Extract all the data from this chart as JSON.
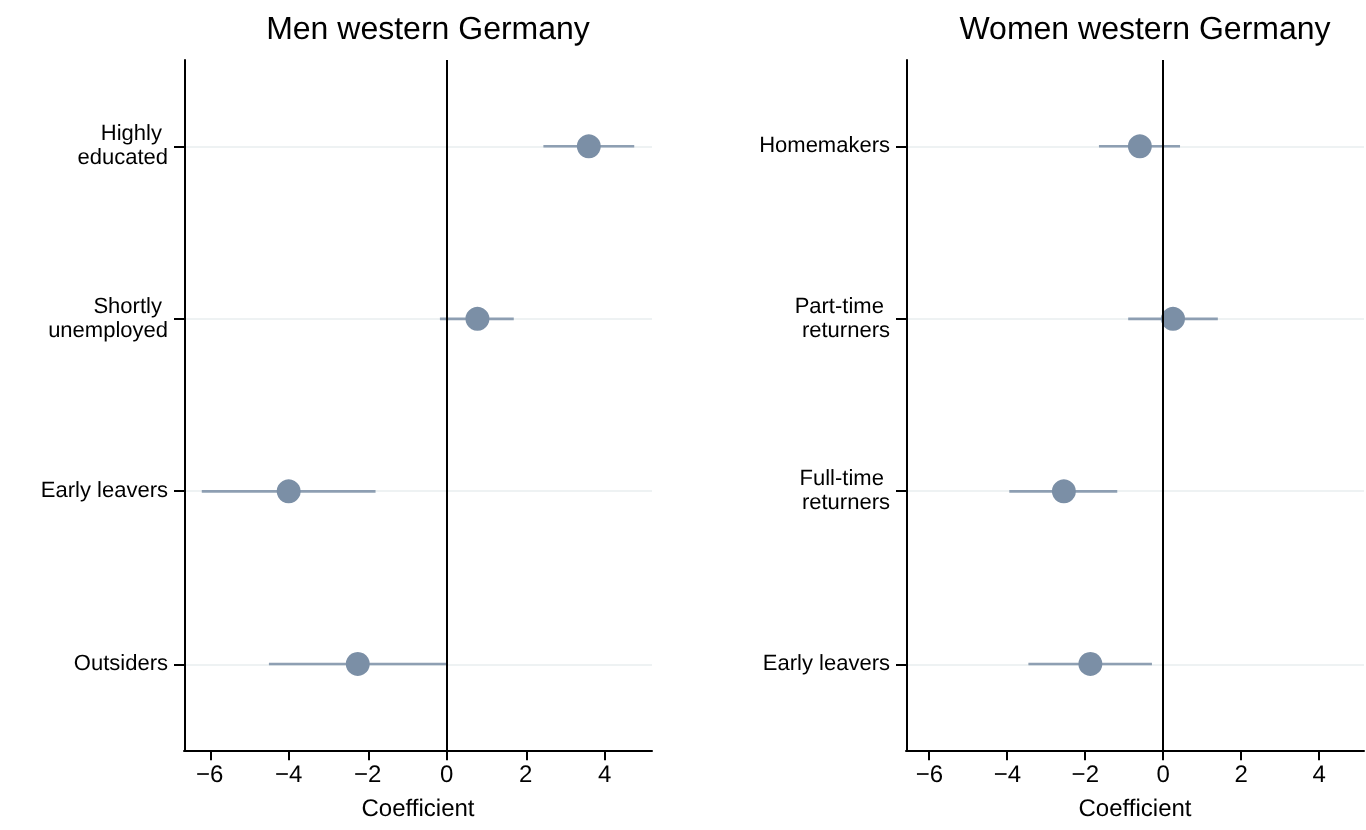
{
  "chart_data": [
    {
      "type": "scatter",
      "orientation": "horizontal",
      "title": "Men western Germany",
      "xlabel": "Coefficient",
      "categories": [
        "Highly educated",
        "Shortly unemployed",
        "Early leavers",
        "Outsiders"
      ],
      "color": "#7b8fa6",
      "values": [
        3.6,
        0.78,
        -4.0,
        -2.25
      ],
      "errors": [
        [
          2.45,
          4.75
        ],
        [
          -0.17,
          1.7
        ],
        [
          -6.2,
          -1.8
        ],
        [
          -4.5,
          0.0
        ]
      ],
      "xlim": [
        -6.65,
        5.2
      ],
      "xticks": [
        {
          "value": -6,
          "label": "−6"
        },
        {
          "value": -4,
          "label": "−4"
        },
        {
          "value": -2,
          "label": "−2"
        },
        0,
        2,
        4
      ],
      "ref_lines": [
        {
          "axis": "x",
          "value": 0,
          "color": "#000000"
        }
      ],
      "grid": "y",
      "marker": "circle"
    },
    {
      "type": "scatter",
      "orientation": "horizontal",
      "title": "Women western Germany",
      "xlabel": "Coefficient",
      "categories": [
        "Homemakers",
        "Part-time returners",
        "Full-time returners",
        "Early leavers"
      ],
      "color": "#7b8fa6",
      "values": [
        -0.6,
        0.25,
        -2.55,
        -1.87
      ],
      "errors": [
        [
          -1.65,
          0.43
        ],
        [
          -0.9,
          1.4
        ],
        [
          -3.95,
          -1.18
        ],
        [
          -3.46,
          -0.29
        ]
      ],
      "xlim": [
        -6.6,
        5.15
      ],
      "xticks": [
        {
          "value": -6,
          "label": "−6"
        },
        {
          "value": -4,
          "label": "−4"
        },
        {
          "value": -2,
          "label": "−2"
        },
        0,
        2,
        4
      ],
      "ref_lines": [
        {
          "axis": "x",
          "value": 0,
          "color": "#000000"
        }
      ],
      "grid": "y",
      "marker": "circle"
    }
  ]
}
